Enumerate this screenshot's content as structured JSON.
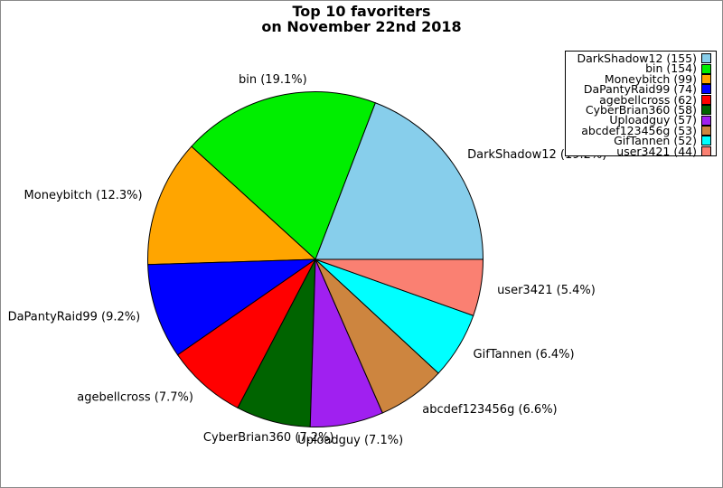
{
  "chart_data": {
    "type": "pie",
    "title": "Top 10 favoriters on November 22nd 2018",
    "title_line1": "Top 10 favoriters",
    "title_line2": "on November 22nd 2018",
    "start_angle_deg": 0,
    "direction": "counterclockwise",
    "label_distance": 1.1,
    "legend_position": "top-right",
    "slices": [
      {
        "name": "DarkShadow12",
        "value": 155,
        "pct": "19.2%",
        "color": "#87CEEB"
      },
      {
        "name": "bin",
        "value": 154,
        "pct": "19.1%",
        "color": "#00EE00"
      },
      {
        "name": "Moneybitch",
        "value": 99,
        "pct": "12.3%",
        "color": "#FFA500"
      },
      {
        "name": "DaPantyRaid99",
        "value": 74,
        "pct": "9.2%",
        "color": "#0000FF"
      },
      {
        "name": "agebellcross",
        "value": 62,
        "pct": "7.7%",
        "color": "#FF0000"
      },
      {
        "name": "CyberBrian360",
        "value": 58,
        "pct": "7.2%",
        "color": "#006400"
      },
      {
        "name": "Uploadguy",
        "value": 57,
        "pct": "7.1%",
        "color": "#A020F0"
      },
      {
        "name": "abcdef123456g",
        "value": 53,
        "pct": "6.6%",
        "color": "#CD853F"
      },
      {
        "name": "GifTannen",
        "value": 52,
        "pct": "6.4%",
        "color": "#00FFFF"
      },
      {
        "name": "user3421",
        "value": 44,
        "pct": "5.4%",
        "color": "#FA8072"
      }
    ]
  }
}
